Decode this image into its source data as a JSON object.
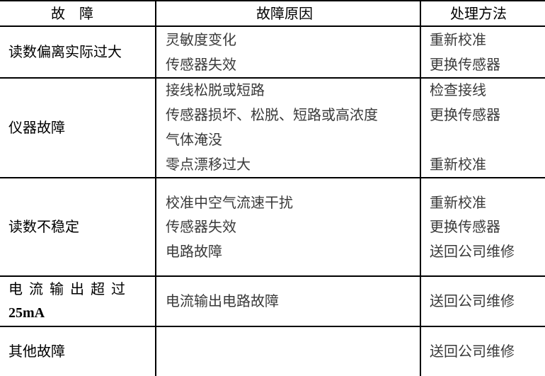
{
  "header": {
    "fault": "故　障",
    "cause": "故障原因",
    "solution": "处理方法"
  },
  "rows": [
    {
      "fault": "读数偏离实际过大",
      "causes": [
        "灵敏度变化",
        "传感器失效"
      ],
      "solutions": [
        "重新校准",
        "更换传感器"
      ]
    },
    {
      "fault": "仪器故障",
      "causes": [
        "接线松脱或短路",
        "传感器损坏、松脱、短路或高浓度",
        "气体淹没",
        "零点漂移过大"
      ],
      "solutions": [
        "检查接线",
        "更换传感器",
        "重新校准"
      ]
    },
    {
      "fault": "读数不稳定",
      "causes": [
        "校准中空气流速干扰",
        "传感器失效",
        "电路故障"
      ],
      "solutions": [
        "重新校准",
        "更换传感器",
        "送回公司维修"
      ]
    },
    {
      "fault_line1": "电流输出超过",
      "fault_line2": "25mA",
      "causes": [
        "电流输出电路故障"
      ],
      "solutions": [
        "送回公司维修"
      ]
    },
    {
      "fault": "其他故障",
      "causes": [],
      "solutions": [
        "送回公司维修"
      ]
    }
  ]
}
